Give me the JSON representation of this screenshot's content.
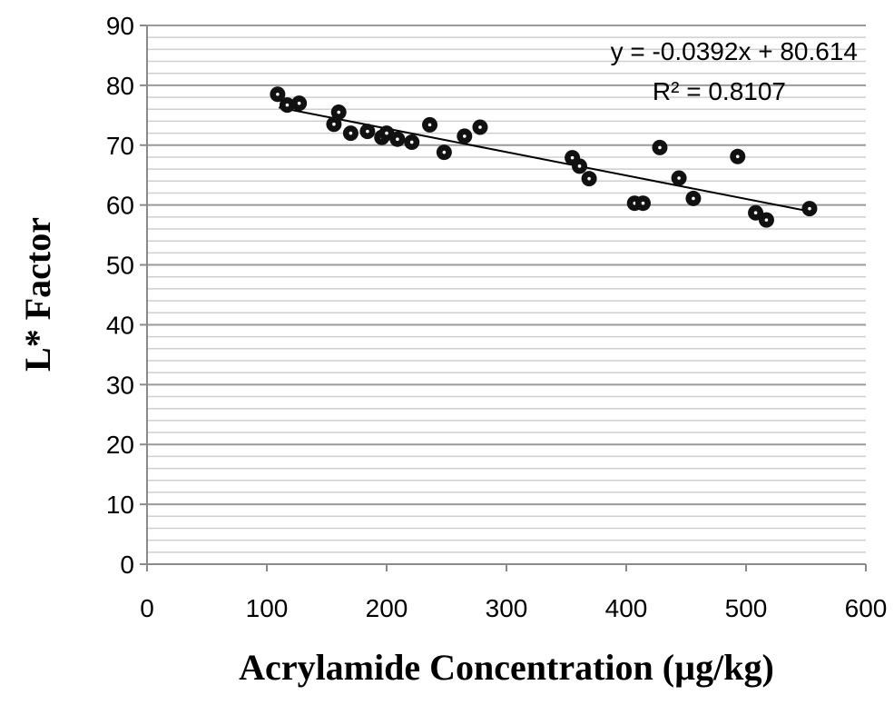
{
  "chart_data": {
    "type": "scatter",
    "title": "",
    "xlabel": "Acrylamide Concentration (µg/kg)",
    "ylabel": "L*  Factor",
    "xlim": [
      0,
      600
    ],
    "ylim": [
      0,
      90
    ],
    "x_ticks": [
      0,
      100,
      200,
      300,
      400,
      500,
      600
    ],
    "y_ticks": [
      0,
      10,
      20,
      30,
      40,
      50,
      60,
      70,
      80,
      90
    ],
    "y_minor_step": 2,
    "grid": "horizontal major and minor",
    "legend": "none",
    "colors": {
      "points": "#111111",
      "trendline": "#000000",
      "major_grid": "#9a9a9a",
      "minor_grid": "#cfcfcf"
    },
    "trendline": {
      "type": "linear",
      "slope": -0.0392,
      "intercept": 80.614,
      "x_range": [
        110,
        553
      ],
      "equation": "y = -0.0392x + 80.614",
      "r_squared": "R² = 0.8107"
    },
    "points": [
      {
        "x": 109,
        "y": 78.5
      },
      {
        "x": 117,
        "y": 76.7
      },
      {
        "x": 127,
        "y": 77.0
      },
      {
        "x": 156,
        "y": 73.5
      },
      {
        "x": 160,
        "y": 75.5
      },
      {
        "x": 170,
        "y": 72.0
      },
      {
        "x": 184,
        "y": 72.3
      },
      {
        "x": 196,
        "y": 71.3
      },
      {
        "x": 200,
        "y": 72.0
      },
      {
        "x": 209,
        "y": 71.0
      },
      {
        "x": 221,
        "y": 70.5
      },
      {
        "x": 236,
        "y": 73.4
      },
      {
        "x": 248,
        "y": 68.8
      },
      {
        "x": 265,
        "y": 71.5
      },
      {
        "x": 278,
        "y": 73.0
      },
      {
        "x": 355,
        "y": 67.9
      },
      {
        "x": 361,
        "y": 66.5
      },
      {
        "x": 369,
        "y": 64.4
      },
      {
        "x": 407,
        "y": 60.3
      },
      {
        "x": 414,
        "y": 60.3
      },
      {
        "x": 428,
        "y": 69.6
      },
      {
        "x": 444,
        "y": 64.5
      },
      {
        "x": 456,
        "y": 61.1
      },
      {
        "x": 493,
        "y": 68.1
      },
      {
        "x": 508,
        "y": 58.7
      },
      {
        "x": 517,
        "y": 57.5
      },
      {
        "x": 553,
        "y": 59.4
      }
    ]
  }
}
